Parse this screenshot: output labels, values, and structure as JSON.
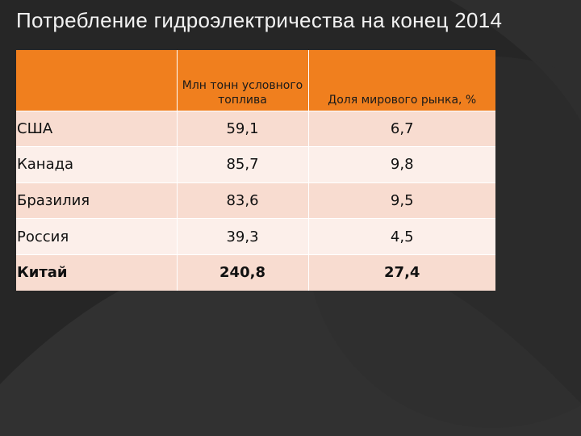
{
  "title": "Потребление гидроэлектричества на конец 2014",
  "table": {
    "headers": [
      "",
      "Млн тонн условного топлива",
      "Доля мирового рынка, %"
    ],
    "rows": [
      {
        "country": "США",
        "fuel": "59,1",
        "share": "6,7"
      },
      {
        "country": "Канада",
        "fuel": "85,7",
        "share": "9,8"
      },
      {
        "country": "Бразилия",
        "fuel": "83,6",
        "share": "9,5"
      },
      {
        "country": "Россия",
        "fuel": "39,3",
        "share": "4,5"
      },
      {
        "country": "Китай",
        "fuel": "240,8",
        "share": "27,4"
      }
    ]
  },
  "colors": {
    "background": "#262626",
    "header_fill": "#f07f1e",
    "row_odd": "#f8dcd0",
    "row_even": "#fcefea"
  }
}
